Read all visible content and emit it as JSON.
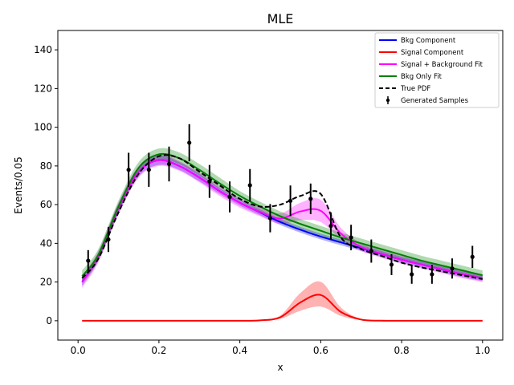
{
  "chart_data": {
    "type": "line",
    "title": "MLE",
    "xlabel": "x",
    "ylabel": "Events/0.05",
    "xlim": [
      -0.05,
      1.05
    ],
    "ylim": [
      -10,
      150
    ],
    "xticks": [
      0.0,
      0.2,
      0.4,
      0.6,
      0.8,
      1.0
    ],
    "xtick_labels": [
      "0.0",
      "0.2",
      "0.4",
      "0.6",
      "0.8",
      "1.0"
    ],
    "yticks": [
      0,
      20,
      40,
      60,
      80,
      100,
      120,
      140
    ],
    "ytick_labels": [
      "0",
      "20",
      "40",
      "60",
      "80",
      "100",
      "120",
      "140"
    ],
    "grid": false,
    "legend_position": "top-right",
    "legend": [
      {
        "label": "Bkg Component",
        "color": "#0000ff",
        "style": "solid"
      },
      {
        "label": "Signal Component",
        "color": "#ff0000",
        "style": "solid"
      },
      {
        "label": "Signal + Background Fit",
        "color": "#ff00ff",
        "style": "solid"
      },
      {
        "label": "Bkg Only Fit",
        "color": "#008000",
        "style": "solid"
      },
      {
        "label": "True PDF",
        "color": "#000000",
        "style": "dashed"
      },
      {
        "label": "Generated Samples",
        "color": "#000000",
        "style": "errorbar"
      }
    ],
    "curve_x": [
      0.01,
      0.05,
      0.1,
      0.15,
      0.2,
      0.25,
      0.3,
      0.35,
      0.4,
      0.45,
      0.5,
      0.55,
      0.6,
      0.65,
      0.7,
      0.75,
      0.8,
      0.85,
      0.9,
      0.95,
      1.0
    ],
    "series": [
      {
        "name": "Bkg Component",
        "color": "#0000ff",
        "y": [
          20,
          33,
          58,
          77,
          83,
          80,
          74,
          67,
          61,
          56,
          51,
          47,
          43.5,
          40.5,
          37.5,
          34.5,
          31.5,
          29,
          26.5,
          24,
          22
        ],
        "band_low": [
          18,
          31,
          55.5,
          74.5,
          80.5,
          78,
          72,
          65.5,
          59.5,
          54.5,
          49.5,
          45.5,
          42,
          39,
          36,
          33,
          30,
          27.5,
          25,
          22.5,
          20.5
        ],
        "band_high": [
          22,
          35,
          60.5,
          79.5,
          85.5,
          82,
          76,
          68.5,
          62.5,
          57.5,
          52.5,
          48.5,
          45,
          42,
          39,
          36,
          33,
          30.5,
          28,
          25.5,
          23.5
        ]
      },
      {
        "name": "Signal Component",
        "color": "#ff0000",
        "y": [
          0,
          0,
          0,
          0,
          0,
          0,
          0,
          0,
          0,
          0.2,
          1.8,
          9.5,
          13.3,
          4.5,
          0.6,
          0.05,
          0,
          0,
          0,
          0,
          0
        ],
        "band_low": [
          0,
          0,
          0,
          0,
          0,
          0,
          0,
          0,
          0,
          0.1,
          1.0,
          5.2,
          7.3,
          2.5,
          0.3,
          0.02,
          0,
          0,
          0,
          0,
          0
        ],
        "band_high": [
          0,
          0,
          0,
          0,
          0,
          0,
          0,
          0,
          0,
          0.3,
          2.7,
          14.4,
          20.1,
          6.8,
          0.9,
          0.08,
          0,
          0,
          0,
          0,
          0
        ]
      },
      {
        "name": "Signal + Background Fit",
        "color": "#ff00ff",
        "y": [
          20,
          33,
          58,
          77,
          83,
          80,
          74,
          67,
          61,
          56.2,
          52.8,
          56.5,
          56.8,
          45,
          38.1,
          34.6,
          31.5,
          29,
          26.5,
          24,
          22
        ],
        "band_low": [
          17,
          30,
          55,
          74,
          80,
          77.5,
          71.5,
          64.5,
          58.5,
          54,
          50,
          52,
          51,
          42,
          36,
          32.5,
          29.5,
          27,
          24.5,
          22,
          20
        ],
        "band_high": [
          23,
          36,
          61,
          80,
          86,
          82.5,
          76.5,
          69.5,
          63.5,
          58.5,
          55.5,
          61,
          62.5,
          48,
          40,
          36.5,
          33.5,
          31,
          28.5,
          26,
          24
        ]
      },
      {
        "name": "Bkg Only Fit",
        "color": "#008000",
        "y": [
          23,
          34,
          59,
          79,
          86,
          84,
          78,
          71,
          64.5,
          59,
          54,
          50,
          46.5,
          43,
          40,
          37,
          34,
          31,
          28.5,
          26,
          23.5
        ],
        "band_low": [
          20,
          31,
          56,
          76,
          83,
          81,
          75,
          68,
          62,
          56.5,
          51.5,
          47.5,
          44,
          40.5,
          37.5,
          34.5,
          31.5,
          29,
          26.5,
          24,
          21.5
        ],
        "band_high": [
          26,
          37,
          62,
          82,
          89,
          87,
          81,
          74,
          67,
          61.5,
          56.5,
          52.5,
          49,
          45.5,
          42.5,
          39.5,
          36.5,
          33.5,
          31,
          28.5,
          26
        ]
      },
      {
        "name": "True PDF",
        "color": "#000000",
        "dashed": true,
        "y": [
          22,
          32,
          56,
          76,
          85,
          84,
          77,
          70,
          63,
          59,
          60,
          64.5,
          65.5,
          43,
          37,
          33.5,
          30,
          27.5,
          25.5,
          23.5,
          21.5
        ]
      }
    ],
    "samples": {
      "name": "Generated Samples",
      "x": [
        0.025,
        0.075,
        0.125,
        0.175,
        0.225,
        0.275,
        0.325,
        0.375,
        0.425,
        0.475,
        0.525,
        0.575,
        0.625,
        0.675,
        0.725,
        0.775,
        0.825,
        0.875,
        0.925,
        0.975
      ],
      "y": [
        31,
        42,
        78,
        78,
        81,
        92,
        72,
        64,
        70,
        53,
        62,
        63,
        49,
        43,
        36,
        29,
        24,
        24,
        27,
        33
      ],
      "yerr": [
        5.5,
        6.5,
        8.8,
        8.8,
        9,
        9.6,
        8.5,
        8,
        8.4,
        7.3,
        7.9,
        7.9,
        7,
        6.6,
        6,
        5.4,
        4.9,
        4.9,
        5.2,
        5.7
      ]
    }
  }
}
